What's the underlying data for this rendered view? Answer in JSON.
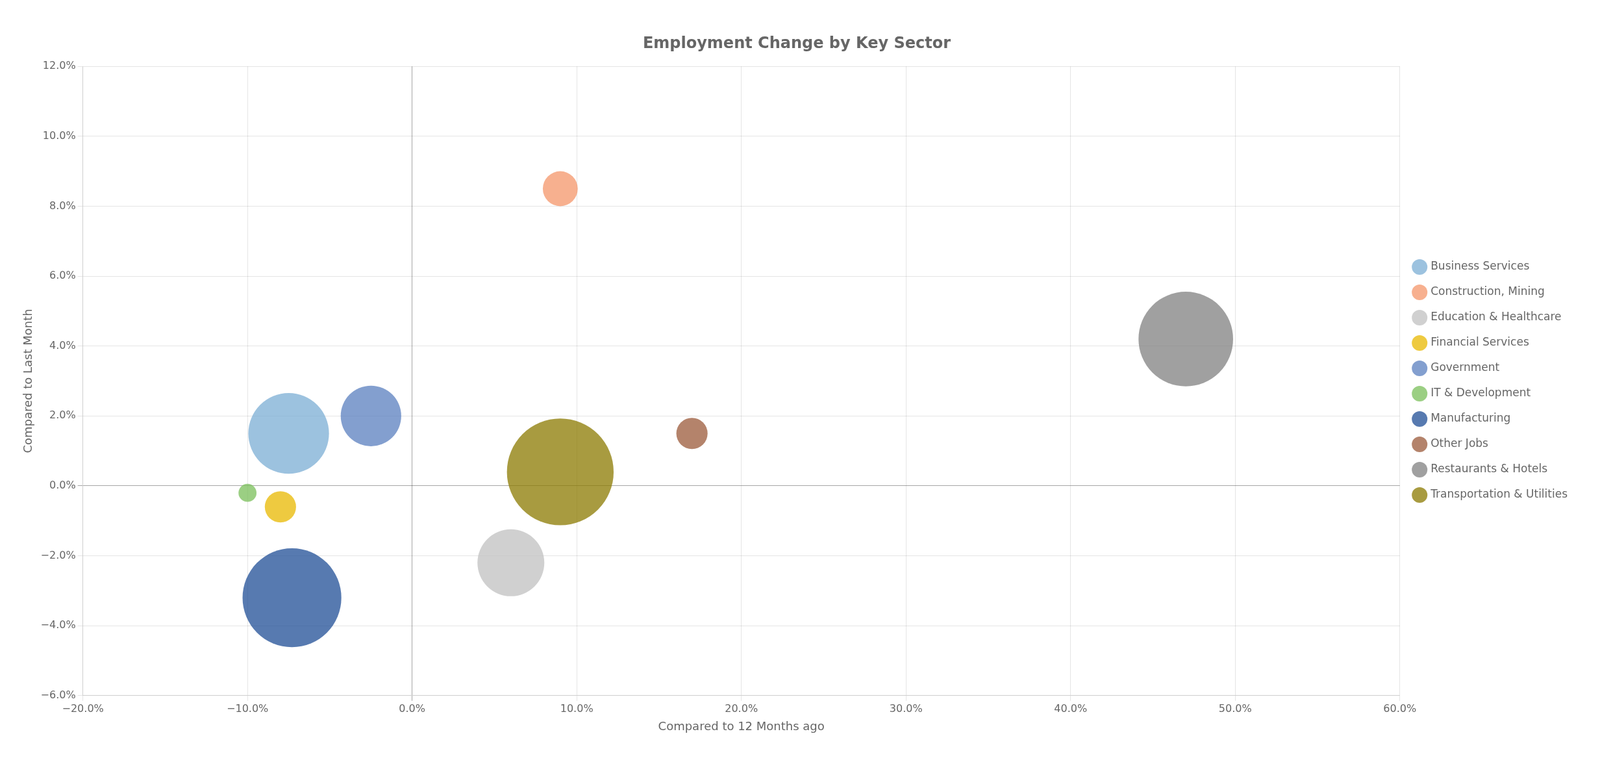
{
  "chart_data": {
    "type": "bubble",
    "title": "Employment Change by Key Sector",
    "xlabel": "Compared to 12 Months ago",
    "ylabel": "Compared to Last Month",
    "xlim": [
      -0.2,
      0.6
    ],
    "ylim": [
      -0.06,
      0.12
    ],
    "xticks": [
      {
        "value": -0.2,
        "label": "−20.0%"
      },
      {
        "value": -0.1,
        "label": "−10.0%"
      },
      {
        "value": 0.0,
        "label": "0.0%"
      },
      {
        "value": 0.1,
        "label": "10.0%"
      },
      {
        "value": 0.2,
        "label": "20.0%"
      },
      {
        "value": 0.3,
        "label": "30.0%"
      },
      {
        "value": 0.4,
        "label": "40.0%"
      },
      {
        "value": 0.5,
        "label": "50.0%"
      },
      {
        "value": 0.6,
        "label": "60.0%"
      }
    ],
    "yticks": [
      {
        "value": -0.06,
        "label": "−6.0%"
      },
      {
        "value": -0.04,
        "label": "−4.0%"
      },
      {
        "value": -0.02,
        "label": "−2.0%"
      },
      {
        "value": 0.0,
        "label": "0.0%"
      },
      {
        "value": 0.02,
        "label": "2.0%"
      },
      {
        "value": 0.04,
        "label": "4.0%"
      },
      {
        "value": 0.06,
        "label": "6.0%"
      },
      {
        "value": 0.08,
        "label": "8.0%"
      },
      {
        "value": 0.1,
        "label": "10.0%"
      },
      {
        "value": 0.12,
        "label": "12.0%"
      }
    ],
    "grid": true,
    "legend": "right",
    "series": [
      {
        "name": "Business Services",
        "color": "#7baed4",
        "x": [
          -0.075
        ],
        "y": [
          0.015
        ],
        "size": [
          8000
        ]
      },
      {
        "name": "Construction, Mining",
        "color": "#f4956a",
        "x": [
          0.09
        ],
        "y": [
          0.085
        ],
        "size": [
          1500
        ]
      },
      {
        "name": "Education & Healthcare",
        "color": "#c0c0c0",
        "x": [
          0.06
        ],
        "y": [
          -0.022
        ],
        "size": [
          5500
        ]
      },
      {
        "name": "Financial Services",
        "color": "#e8b800",
        "x": [
          -0.08
        ],
        "y": [
          -0.006
        ],
        "size": [
          1200
        ]
      },
      {
        "name": "Government",
        "color": "#5a7fbf",
        "x": [
          -0.025
        ],
        "y": [
          0.02
        ],
        "size": [
          4500
        ]
      },
      {
        "name": "IT & Development",
        "color": "#7abf5a",
        "x": [
          -0.1
        ],
        "y": [
          -0.002
        ],
        "size": [
          400
        ]
      },
      {
        "name": "Manufacturing",
        "color": "#1f4e96",
        "x": [
          -0.073
        ],
        "y": [
          -0.032
        ],
        "size": [
          12000
        ]
      },
      {
        "name": "Other Jobs",
        "color": "#9b5a3a",
        "x": [
          0.17
        ],
        "y": [
          0.015
        ],
        "size": [
          1200
        ]
      },
      {
        "name": "Restaurants & Hotels",
        "color": "#808080",
        "x": [
          0.47
        ],
        "y": [
          0.042
        ],
        "size": [
          11000
        ]
      },
      {
        "name": "Transportation & Utilities",
        "color": "#8b7a00",
        "x": [
          0.09
        ],
        "y": [
          0.004
        ],
        "size": [
          14000
        ]
      }
    ]
  }
}
